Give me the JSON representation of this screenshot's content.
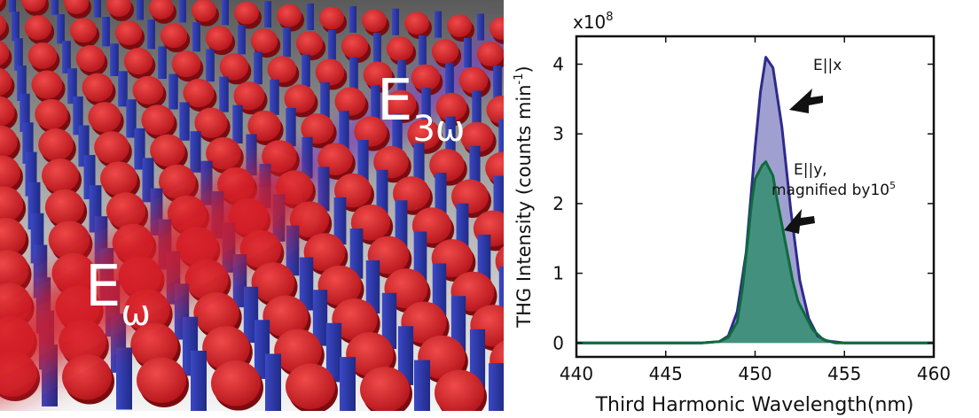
{
  "illustration": {
    "incident_label": "E",
    "incident_subscript": "ω",
    "harmonic_label": "E",
    "harmonic_subscript": "3ω",
    "colors": {
      "disk": "#d41f26",
      "bar": "#2d3aa8",
      "incident_beam": "#d41f26",
      "harmonic_beam": "#7a3fbe"
    }
  },
  "chart_data": {
    "type": "area",
    "title": "",
    "xlabel": "Third Harmonic Wavelength(nm)",
    "ylabel": "THG Intensity (counts min",
    "ylabel_sup": "-1",
    "ylabel_close": ")",
    "y_multiplier": "x10",
    "y_multiplier_exp": "8",
    "xlim": [
      440,
      460
    ],
    "ylim": [
      -0.2,
      4.4
    ],
    "xticks": [
      440,
      445,
      450,
      455,
      460
    ],
    "yticks": [
      0,
      1,
      2,
      3,
      4
    ],
    "grid": false,
    "series": [
      {
        "name": "E||x",
        "color": "#2e2a8c",
        "fill": "#8f8fc8",
        "x": [
          440,
          447,
          448,
          448.5,
          449,
          449.5,
          450,
          450.3,
          450.6,
          451,
          451.5,
          452,
          452.5,
          453,
          453.5,
          454,
          455,
          460
        ],
        "y": [
          0,
          0,
          0.02,
          0.1,
          0.45,
          1.3,
          2.8,
          3.6,
          4.1,
          3.95,
          3.1,
          1.9,
          0.9,
          0.35,
          0.1,
          0.03,
          0,
          0
        ]
      },
      {
        "name": "E||y,",
        "color": "#0e6b3c",
        "fill": "#3f8f7a",
        "x": [
          440,
          447,
          448,
          448.5,
          449,
          449.3,
          449.6,
          449.8,
          450,
          450.2,
          450.4,
          450.6,
          450.8,
          451,
          451.2,
          451.5,
          451.8,
          452.1,
          452.4,
          452.8,
          453.2,
          453.8,
          454.5,
          460
        ],
        "y": [
          0,
          0,
          0.02,
          0.08,
          0.3,
          0.8,
          1.5,
          2.0,
          2.35,
          2.45,
          2.55,
          2.6,
          2.5,
          2.4,
          2.1,
          1.7,
          1.3,
          0.9,
          0.6,
          0.4,
          0.2,
          0.05,
          0,
          0
        ]
      }
    ],
    "annotations": [
      {
        "text": "E||x"
      },
      {
        "text_lines": [
          "E||y,",
          "magnified by10"
        ],
        "superscript": "5"
      }
    ]
  }
}
